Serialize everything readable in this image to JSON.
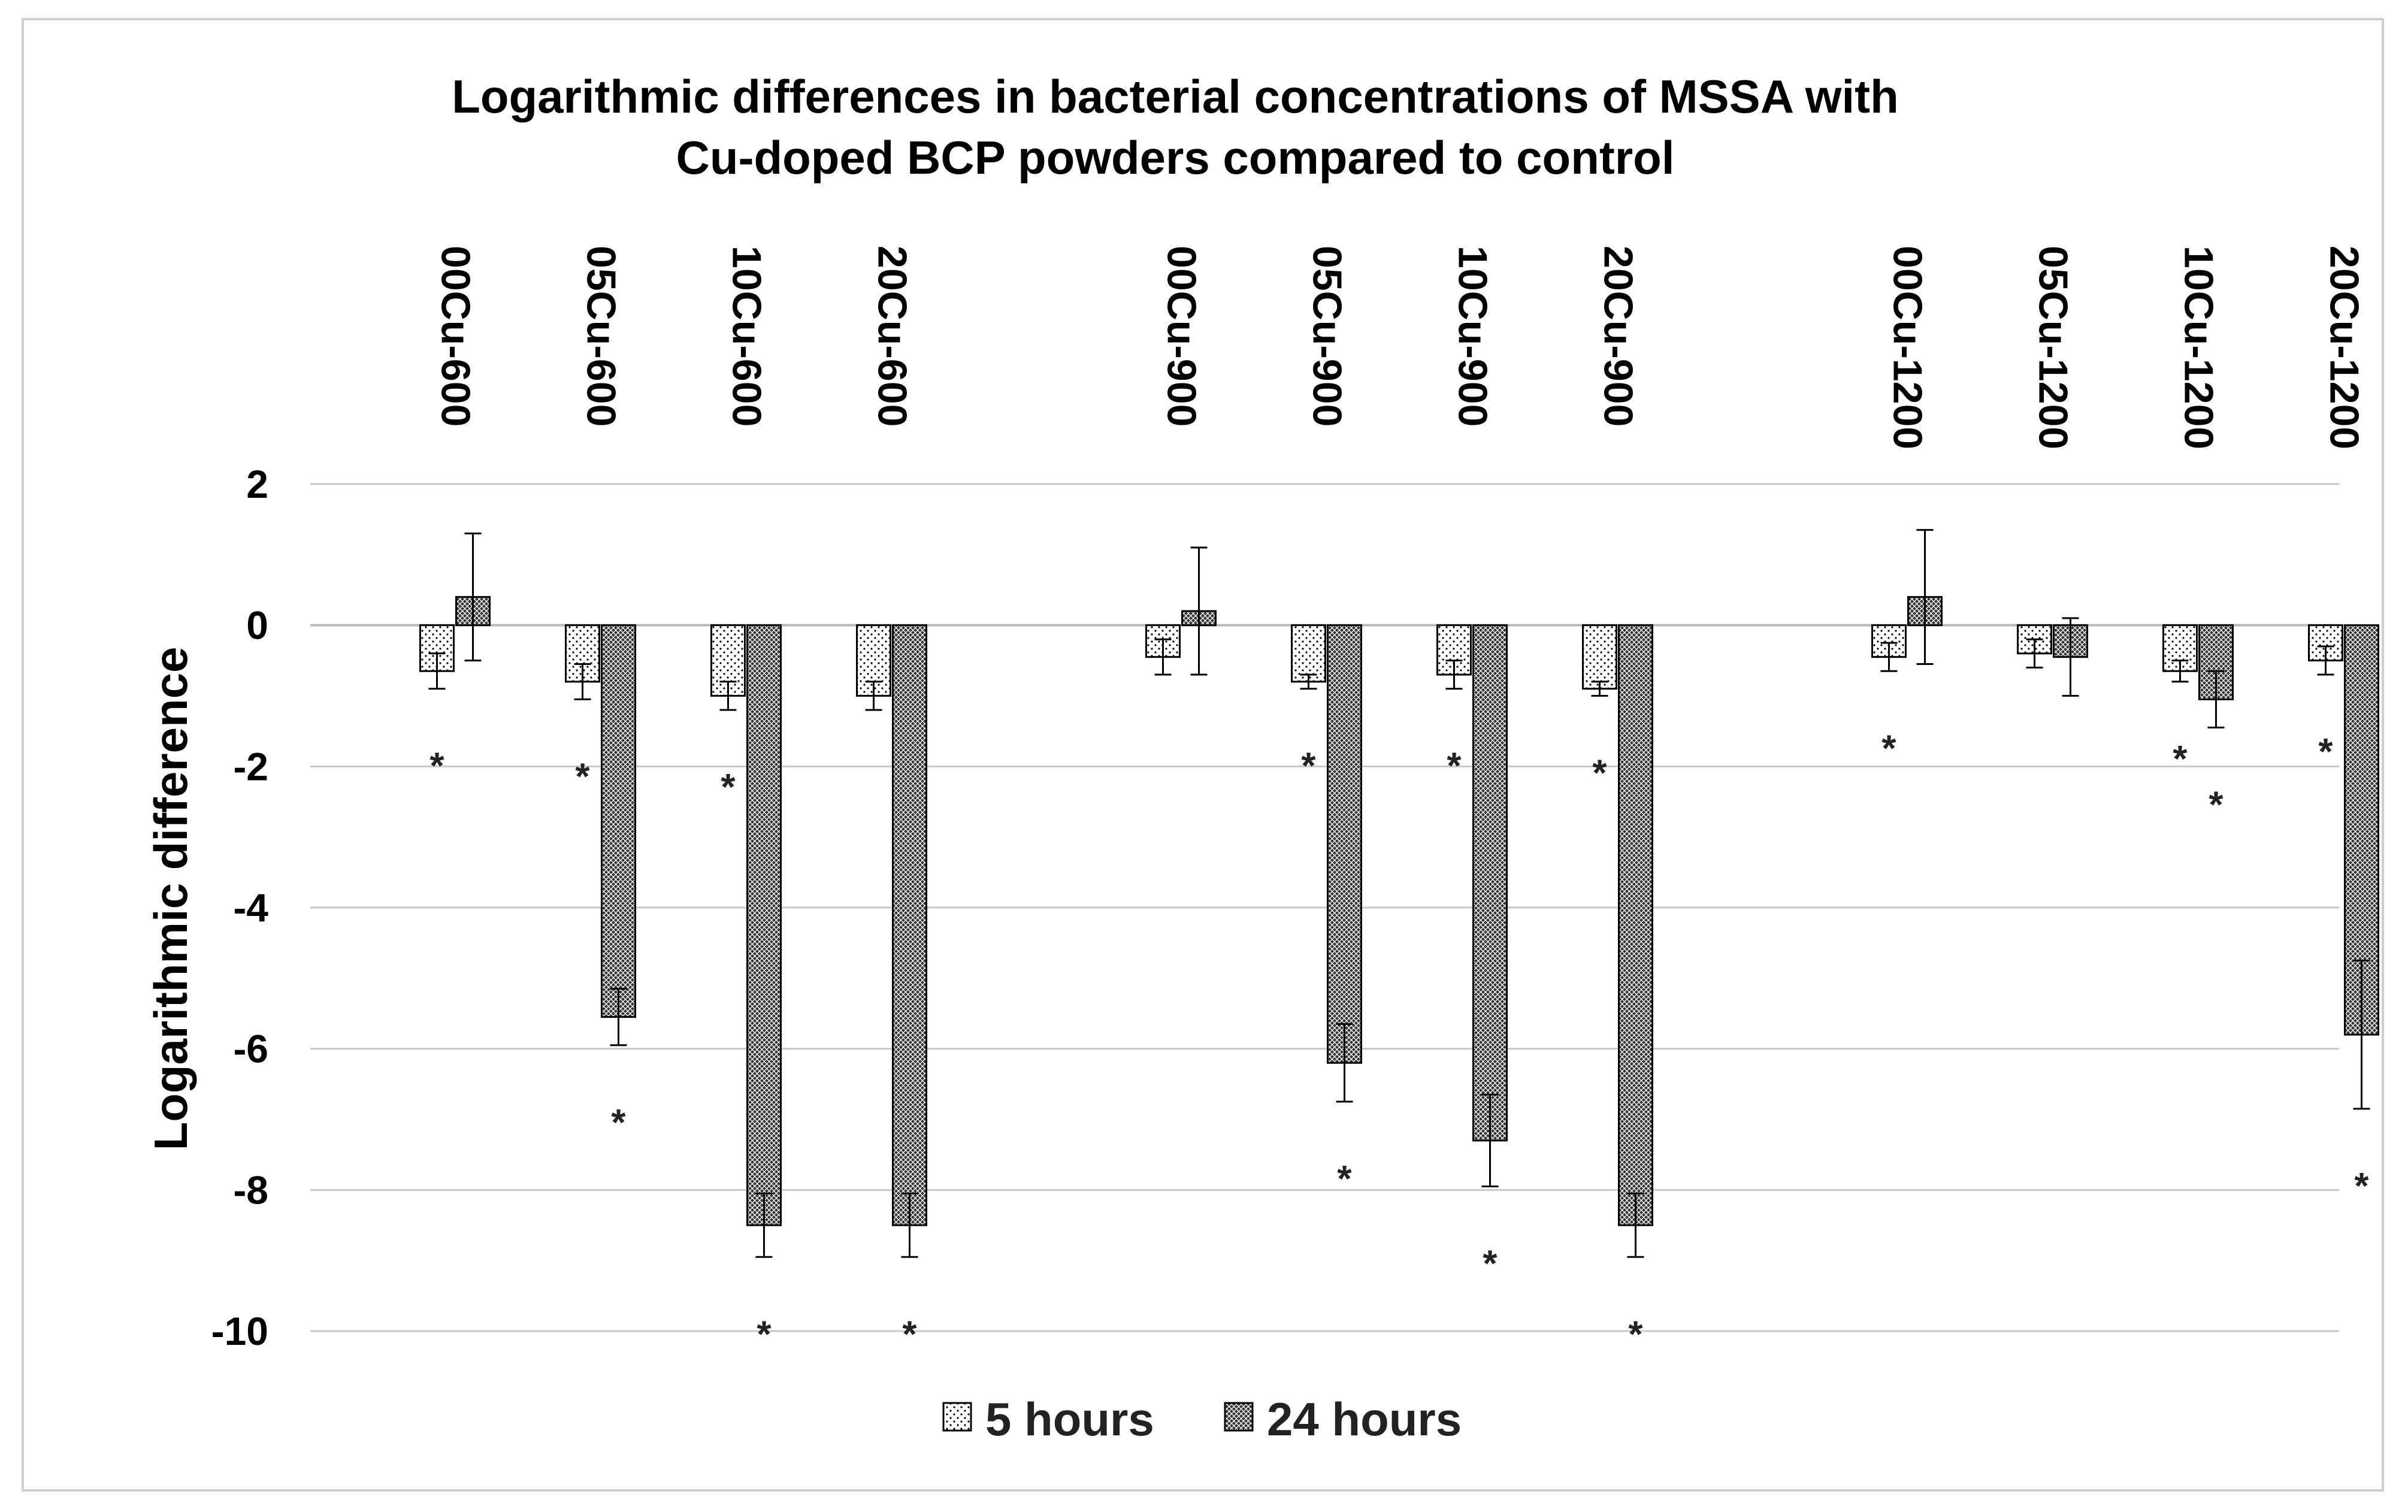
{
  "chart_data": {
    "type": "bar",
    "title": [
      "Logarithmic differences in bacterial concentrations of MSSA with",
      "Cu-doped BCP powders compared to control"
    ],
    "ylabel": "Logarithmic difference",
    "xlabel": "",
    "ylim": [
      -10,
      2
    ],
    "yticks": [
      2,
      0,
      -2,
      -4,
      -6,
      -8,
      -10
    ],
    "grid": true,
    "legend_position": "bottom",
    "groups": [
      [
        "00Cu-600",
        "05Cu-600",
        "10Cu-600",
        "20Cu-600"
      ],
      [
        "00Cu-900",
        "05Cu-900",
        "10Cu-900",
        "20Cu-900"
      ],
      [
        "00Cu-1200",
        "05Cu-1200",
        "10Cu-1200",
        "20Cu-1200"
      ]
    ],
    "categories": [
      "00Cu-600",
      "05Cu-600",
      "10Cu-600",
      "20Cu-600",
      "00Cu-900",
      "05Cu-900",
      "10Cu-900",
      "20Cu-900",
      "00Cu-1200",
      "05Cu-1200",
      "10Cu-1200",
      "20Cu-1200"
    ],
    "series": [
      {
        "name": "5 hours",
        "pattern": "dots",
        "values": [
          -0.65,
          -0.8,
          -1.0,
          -1.0,
          -0.45,
          -0.8,
          -0.7,
          -0.9,
          -0.45,
          -0.4,
          -0.65,
          -0.5
        ],
        "errors": [
          0.25,
          0.25,
          0.2,
          0.2,
          0.25,
          0.1,
          0.2,
          0.1,
          0.2,
          0.2,
          0.15,
          0.2
        ],
        "significant": [
          true,
          true,
          true,
          false,
          false,
          true,
          true,
          true,
          true,
          false,
          true,
          true
        ]
      },
      {
        "name": "24 hours",
        "pattern": "crosshatch",
        "values": [
          0.4,
          -5.55,
          -8.5,
          -8.5,
          0.2,
          -6.2,
          -7.3,
          -8.5,
          0.4,
          -0.45,
          -1.05,
          -5.8
        ],
        "errors": [
          0.9,
          0.4,
          0.45,
          0.45,
          0.9,
          0.55,
          0.65,
          0.45,
          0.95,
          0.55,
          0.4,
          1.05
        ],
        "significant": [
          false,
          true,
          true,
          true,
          false,
          true,
          true,
          true,
          false,
          false,
          true,
          true
        ]
      }
    ],
    "significance_marker": "*"
  },
  "colors": {
    "bar_stroke": "#000000",
    "grid": "#c8c8c8",
    "axis": "#000000",
    "marker": "#222222",
    "frame": "#d0d0d0"
  }
}
